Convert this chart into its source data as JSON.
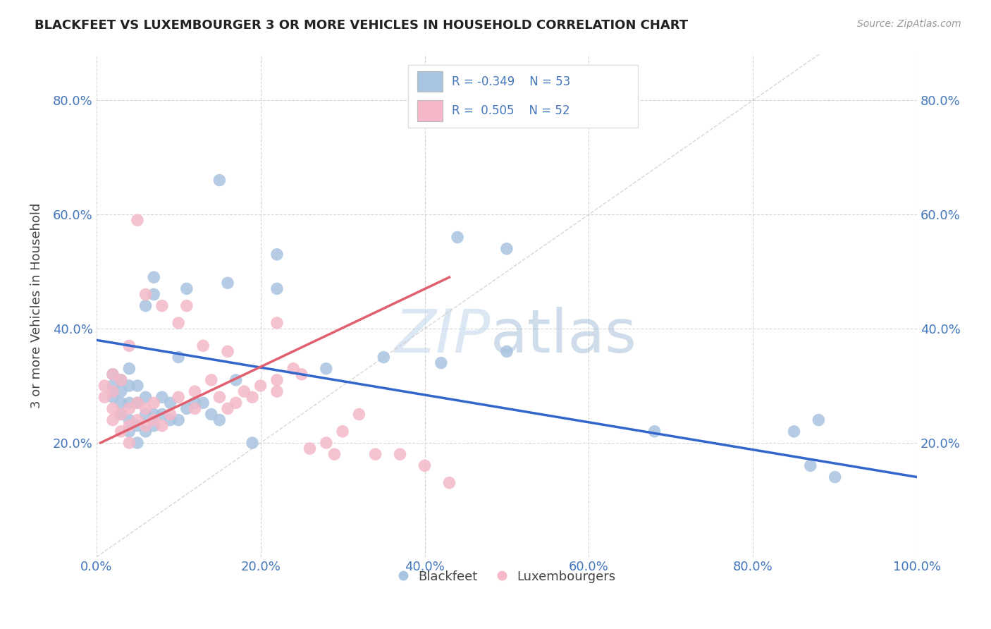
{
  "title": "BLACKFEET VS LUXEMBOURGER 3 OR MORE VEHICLES IN HOUSEHOLD CORRELATION CHART",
  "source": "Source: ZipAtlas.com",
  "ylabel": "3 or more Vehicles in Household",
  "xlim": [
    0,
    1.0
  ],
  "ylim": [
    0.0,
    0.88
  ],
  "xticks": [
    0.0,
    0.2,
    0.4,
    0.6,
    0.8,
    1.0
  ],
  "yticks": [
    0.2,
    0.4,
    0.6,
    0.8
  ],
  "xticklabels": [
    "0.0%",
    "20.0%",
    "40.0%",
    "60.0%",
    "80.0%",
    "100.0%"
  ],
  "yticklabels": [
    "20.0%",
    "40.0%",
    "60.0%",
    "80.0%"
  ],
  "blue_color": "#a8c4e0",
  "pink_color": "#f4b8c8",
  "blue_line_color": "#3366cc",
  "pink_line_color": "#e06070",
  "legend_text_color": "#4477bb",
  "blue_scatter_x": [
    0.02,
    0.02,
    0.02,
    0.03,
    0.03,
    0.03,
    0.03,
    0.04,
    0.04,
    0.04,
    0.04,
    0.04,
    0.05,
    0.05,
    0.05,
    0.05,
    0.06,
    0.06,
    0.06,
    0.06,
    0.07,
    0.07,
    0.07,
    0.07,
    0.08,
    0.08,
    0.09,
    0.09,
    0.1,
    0.1,
    0.11,
    0.11,
    0.12,
    0.13,
    0.14,
    0.15,
    0.15,
    0.16,
    0.17,
    0.19,
    0.22,
    0.22,
    0.28,
    0.35,
    0.42,
    0.44,
    0.5,
    0.68,
    0.85,
    0.87,
    0.88,
    0.9,
    0.5
  ],
  "blue_scatter_y": [
    0.28,
    0.3,
    0.32,
    0.25,
    0.27,
    0.29,
    0.31,
    0.22,
    0.24,
    0.27,
    0.3,
    0.33,
    0.2,
    0.23,
    0.27,
    0.3,
    0.22,
    0.25,
    0.28,
    0.44,
    0.23,
    0.25,
    0.46,
    0.49,
    0.25,
    0.28,
    0.24,
    0.27,
    0.24,
    0.35,
    0.26,
    0.47,
    0.27,
    0.27,
    0.25,
    0.24,
    0.66,
    0.48,
    0.31,
    0.2,
    0.47,
    0.53,
    0.33,
    0.35,
    0.34,
    0.56,
    0.54,
    0.22,
    0.22,
    0.16,
    0.24,
    0.14,
    0.36
  ],
  "pink_scatter_x": [
    0.01,
    0.01,
    0.02,
    0.02,
    0.02,
    0.02,
    0.03,
    0.03,
    0.03,
    0.04,
    0.04,
    0.04,
    0.04,
    0.05,
    0.05,
    0.05,
    0.06,
    0.06,
    0.06,
    0.07,
    0.07,
    0.08,
    0.08,
    0.09,
    0.1,
    0.1,
    0.11,
    0.12,
    0.12,
    0.13,
    0.14,
    0.15,
    0.16,
    0.16,
    0.17,
    0.18,
    0.19,
    0.2,
    0.22,
    0.22,
    0.22,
    0.24,
    0.25,
    0.26,
    0.28,
    0.29,
    0.3,
    0.32,
    0.34,
    0.37,
    0.4,
    0.43
  ],
  "pink_scatter_y": [
    0.28,
    0.3,
    0.24,
    0.26,
    0.29,
    0.32,
    0.22,
    0.25,
    0.31,
    0.2,
    0.23,
    0.26,
    0.37,
    0.24,
    0.27,
    0.59,
    0.23,
    0.26,
    0.46,
    0.24,
    0.27,
    0.23,
    0.44,
    0.25,
    0.28,
    0.41,
    0.44,
    0.26,
    0.29,
    0.37,
    0.31,
    0.28,
    0.26,
    0.36,
    0.27,
    0.29,
    0.28,
    0.3,
    0.29,
    0.31,
    0.41,
    0.33,
    0.32,
    0.19,
    0.2,
    0.18,
    0.22,
    0.25,
    0.18,
    0.18,
    0.16,
    0.13
  ],
  "blue_trend_x": [
    0.0,
    1.0
  ],
  "blue_trend_y": [
    0.38,
    0.14
  ],
  "pink_trend_x": [
    0.005,
    0.43
  ],
  "pink_trend_y": [
    0.2,
    0.49
  ],
  "watermark_zip": "ZIP",
  "watermark_atlas": "atlas",
  "background_color": "#ffffff",
  "grid_color": "#cccccc",
  "tick_color": "#4477bb"
}
